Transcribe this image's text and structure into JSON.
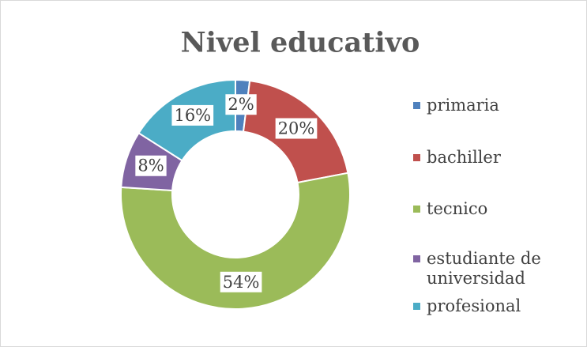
{
  "chart_data": {
    "type": "donut",
    "title": "Nivel educativo",
    "categories": [
      "primaria",
      "bachiller",
      "tecnico",
      "estudiante de universidad",
      "profesional"
    ],
    "values": [
      2,
      20,
      54,
      8,
      16
    ],
    "value_labels": [
      "2%",
      "20%",
      "54%",
      "8%",
      "16%"
    ],
    "colors": [
      "#4f81bd",
      "#c0504d",
      "#9bbb59",
      "#8064a2",
      "#4bacc6"
    ],
    "legend": "right"
  }
}
